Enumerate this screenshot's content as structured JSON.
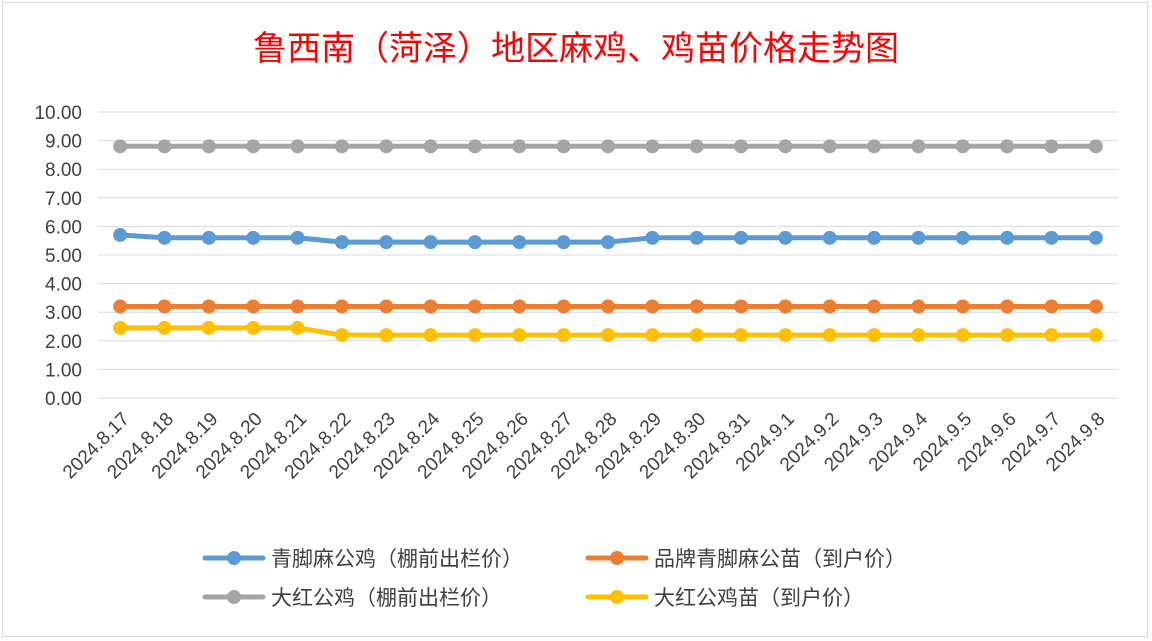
{
  "chart_data": {
    "type": "line",
    "title": "鲁西南（菏泽）地区麻鸡、鸡苗价格走势图",
    "xlabel": "",
    "ylabel": "",
    "ylim": [
      0,
      10
    ],
    "y_ticks": [
      "0.00",
      "1.00",
      "2.00",
      "3.00",
      "4.00",
      "5.00",
      "6.00",
      "7.00",
      "8.00",
      "9.00",
      "10.00"
    ],
    "grid": true,
    "legend_position": "bottom",
    "categories": [
      "2024.8.17",
      "2024.8.18",
      "2024.8.19",
      "2024.8.20",
      "2024.8.21",
      "2024.8.22",
      "2024.8.23",
      "2024.8.24",
      "2024.8.25",
      "2024.8.26",
      "2024.8.27",
      "2024.8.28",
      "2024.8.29",
      "2024.8.30",
      "2024.8.31",
      "2024.9.1",
      "2024.9.2",
      "2024.9.3",
      "2024.9.4",
      "2024.9.5",
      "2024.9.6",
      "2024.9.7",
      "2024.9.8"
    ],
    "series": [
      {
        "name": "青脚麻公鸡（棚前出栏价）",
        "color": "#5b9bd5",
        "values": [
          5.7,
          5.6,
          5.6,
          5.6,
          5.6,
          5.45,
          5.45,
          5.45,
          5.45,
          5.45,
          5.45,
          5.45,
          5.6,
          5.6,
          5.6,
          5.6,
          5.6,
          5.6,
          5.6,
          5.6,
          5.6,
          5.6,
          5.6
        ]
      },
      {
        "name": "品牌青脚麻公苗（到户价）",
        "color": "#ed7d31",
        "values": [
          3.2,
          3.2,
          3.2,
          3.2,
          3.2,
          3.2,
          3.2,
          3.2,
          3.2,
          3.2,
          3.2,
          3.2,
          3.2,
          3.2,
          3.2,
          3.2,
          3.2,
          3.2,
          3.2,
          3.2,
          3.2,
          3.2,
          3.2
        ]
      },
      {
        "name": "大红公鸡（棚前出栏价）",
        "color": "#a5a5a5",
        "values": [
          8.8,
          8.8,
          8.8,
          8.8,
          8.8,
          8.8,
          8.8,
          8.8,
          8.8,
          8.8,
          8.8,
          8.8,
          8.8,
          8.8,
          8.8,
          8.8,
          8.8,
          8.8,
          8.8,
          8.8,
          8.8,
          8.8,
          8.8
        ]
      },
      {
        "name": "大红公鸡苗（到户价）",
        "color": "#ffc000",
        "values": [
          2.45,
          2.45,
          2.45,
          2.45,
          2.45,
          2.2,
          2.2,
          2.2,
          2.2,
          2.2,
          2.2,
          2.2,
          2.2,
          2.2,
          2.2,
          2.2,
          2.2,
          2.2,
          2.2,
          2.2,
          2.2,
          2.2,
          2.2
        ]
      }
    ]
  }
}
